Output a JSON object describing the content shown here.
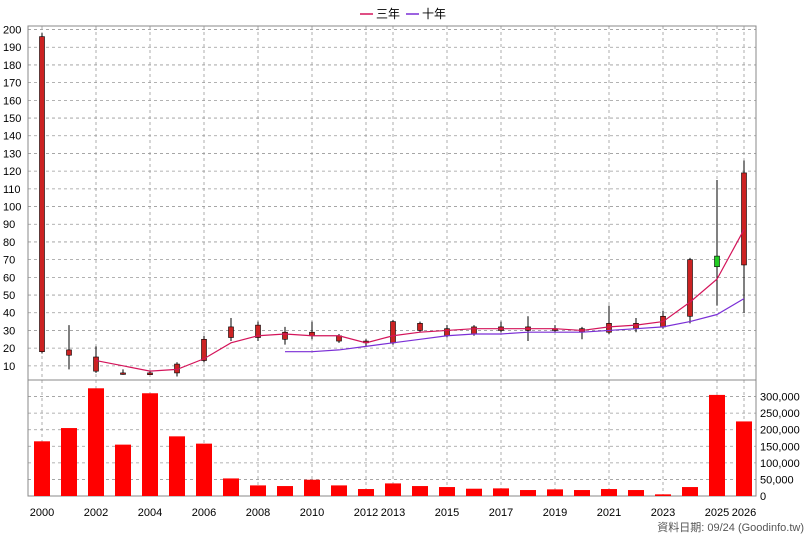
{
  "legend": {
    "three_year": "三年",
    "ten_year": "十年"
  },
  "credit": "資料日期: 09/24  (Goodinfo.tw)",
  "colors": {
    "up_candle": "#cc2222",
    "down_candle": "#22cc22",
    "three_year_line": "#d4145a",
    "ten_year_line": "#7b2fd6",
    "volume_bar": "#ff0000",
    "grid": "#999999"
  },
  "chart_data": {
    "type": "candlestick_with_volume",
    "price_axis": {
      "range": [
        2,
        202
      ],
      "ticks": [
        10,
        20,
        30,
        40,
        50,
        60,
        70,
        80,
        90,
        100,
        110,
        120,
        130,
        140,
        150,
        160,
        170,
        180,
        190,
        200
      ],
      "side": "left"
    },
    "volume_axis": {
      "range": [
        0,
        350000
      ],
      "ticks": [
        0,
        50000,
        100000,
        150000,
        200000,
        250000,
        300000
      ],
      "tick_labels": [
        "0",
        "50,000",
        "100,000",
        "150,000",
        "200,000",
        "250,000",
        "300,000"
      ],
      "side": "right"
    },
    "x_labels": [
      "2000",
      "2002",
      "2004",
      "2006",
      "2008",
      "2010",
      "2012",
      "2013",
      "2015",
      "2017",
      "2019",
      "2021",
      "2023",
      "2025",
      "2026"
    ],
    "grid": true,
    "candles": [
      {
        "year": "2000",
        "open": 18,
        "high": 198,
        "low": 17,
        "close": 196
      },
      {
        "year": "2001",
        "open": 16,
        "high": 33,
        "low": 8,
        "close": 19
      },
      {
        "year": "2002",
        "open": 7,
        "high": 21,
        "low": 6,
        "close": 15
      },
      {
        "year": "2003",
        "open": 6,
        "high": 8,
        "low": 5,
        "close": 6
      },
      {
        "year": "2004",
        "open": 5,
        "high": 7,
        "low": 5,
        "close": 6
      },
      {
        "year": "2005",
        "open": 6,
        "high": 12,
        "low": 4,
        "close": 11
      },
      {
        "year": "2006",
        "open": 13,
        "high": 27,
        "low": 12,
        "close": 25
      },
      {
        "year": "2007",
        "open": 26,
        "high": 37,
        "low": 24,
        "close": 32
      },
      {
        "year": "2008",
        "open": 26,
        "high": 35,
        "low": 24,
        "close": 33
      },
      {
        "year": "2009",
        "open": 25,
        "high": 32,
        "low": 22,
        "close": 29
      },
      {
        "year": "2010",
        "open": 27,
        "high": 35,
        "low": 25,
        "close": 29
      },
      {
        "year": "2011",
        "open": 24,
        "high": 28,
        "low": 23,
        "close": 27
      },
      {
        "year": "2012",
        "open": 23,
        "high": 25,
        "low": 21,
        "close": 24
      },
      {
        "year": "2013",
        "open": 23,
        "high": 36,
        "low": 22,
        "close": 35
      },
      {
        "year": "2014",
        "open": 30,
        "high": 35,
        "low": 29,
        "close": 34
      },
      {
        "year": "2015",
        "open": 27,
        "high": 33,
        "low": 26,
        "close": 31
      },
      {
        "year": "2016",
        "open": 28,
        "high": 33,
        "low": 27,
        "close": 32
      },
      {
        "year": "2017",
        "open": 30,
        "high": 35,
        "low": 29,
        "close": 32
      },
      {
        "year": "2018",
        "open": 30,
        "high": 38,
        "low": 24,
        "close": 32
      },
      {
        "year": "2019",
        "open": 30,
        "high": 33,
        "low": 29,
        "close": 31
      },
      {
        "year": "2020",
        "open": 29,
        "high": 32,
        "low": 25,
        "close": 31
      },
      {
        "year": "2021",
        "open": 29,
        "high": 44,
        "low": 28,
        "close": 34
      },
      {
        "year": "2022",
        "open": 31,
        "high": 37,
        "low": 29,
        "close": 34
      },
      {
        "year": "2023",
        "open": 32,
        "high": 41,
        "low": 31,
        "close": 38
      },
      {
        "year": "2024",
        "open": 38,
        "high": 71,
        "low": 34,
        "close": 70
      },
      {
        "year": "2025",
        "open": 72,
        "high": 115,
        "low": 44,
        "close": 66
      },
      {
        "year": "2026",
        "open": 67,
        "high": 126,
        "low": 40,
        "close": 119
      }
    ],
    "three_year_line": [
      {
        "year": "2002",
        "value": 13
      },
      {
        "year": "2003",
        "value": 10
      },
      {
        "year": "2004",
        "value": 7
      },
      {
        "year": "2005",
        "value": 8
      },
      {
        "year": "2006",
        "value": 14
      },
      {
        "year": "2007",
        "value": 23
      },
      {
        "year": "2008",
        "value": 27
      },
      {
        "year": "2009",
        "value": 28
      },
      {
        "year": "2010",
        "value": 27
      },
      {
        "year": "2011",
        "value": 27
      },
      {
        "year": "2012",
        "value": 23
      },
      {
        "year": "2013",
        "value": 27
      },
      {
        "year": "2014",
        "value": 29
      },
      {
        "year": "2015",
        "value": 30
      },
      {
        "year": "2016",
        "value": 31
      },
      {
        "year": "2017",
        "value": 31
      },
      {
        "year": "2018",
        "value": 31
      },
      {
        "year": "2019",
        "value": 31
      },
      {
        "year": "2020",
        "value": 30
      },
      {
        "year": "2021",
        "value": 32
      },
      {
        "year": "2022",
        "value": 33
      },
      {
        "year": "2023",
        "value": 35
      },
      {
        "year": "2024",
        "value": 46
      },
      {
        "year": "2025",
        "value": 59
      },
      {
        "year": "2026",
        "value": 87
      }
    ],
    "ten_year_line": [
      {
        "year": "2009",
        "value": 18
      },
      {
        "year": "2010",
        "value": 18
      },
      {
        "year": "2011",
        "value": 19
      },
      {
        "year": "2012",
        "value": 21
      },
      {
        "year": "2013",
        "value": 23
      },
      {
        "year": "2014",
        "value": 25
      },
      {
        "year": "2015",
        "value": 27
      },
      {
        "year": "2016",
        "value": 28
      },
      {
        "year": "2017",
        "value": 28
      },
      {
        "year": "2018",
        "value": 29
      },
      {
        "year": "2019",
        "value": 29
      },
      {
        "year": "2020",
        "value": 29
      },
      {
        "year": "2021",
        "value": 30
      },
      {
        "year": "2022",
        "value": 31
      },
      {
        "year": "2023",
        "value": 32
      },
      {
        "year": "2024",
        "value": 35
      },
      {
        "year": "2025",
        "value": 39
      },
      {
        "year": "2026",
        "value": 48
      }
    ],
    "volume": [
      165000,
      205000,
      325000,
      155000,
      310000,
      180000,
      158000,
      53000,
      32000,
      30000,
      49000,
      32000,
      21000,
      38000,
      30000,
      27000,
      22000,
      23000,
      18000,
      20000,
      18000,
      21000,
      18000,
      5000,
      27000,
      305000,
      225000
    ]
  }
}
